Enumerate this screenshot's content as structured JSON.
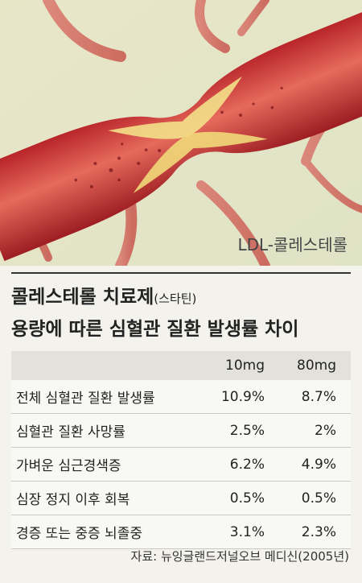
{
  "image": {
    "caption": "LDL-콜레스테롤"
  },
  "header": {
    "title_line1": "콜레스테롤 치료제",
    "title_note": "(스타틴)",
    "title_line2": "용량에 따른 심혈관 질환 발생률 차이"
  },
  "table": {
    "columns": [
      "10mg",
      "80mg"
    ],
    "rows": [
      [
        "전체 심혈관 질환 발생률",
        "10.9%",
        "8.7%"
      ],
      [
        "심혈관 질환 사망률",
        "2.5%",
        "2%"
      ],
      [
        "가벼운 심근경색증",
        "6.2%",
        "4.9%"
      ],
      [
        "심장 정지 이후 회복",
        "0.5%",
        "0.5%"
      ],
      [
        "경증 또는 중증 뇌졸중",
        "3.1%",
        "2.3%"
      ]
    ]
  },
  "source": "자료: 뉴잉글랜드저널오브 메디신(2005년)"
}
